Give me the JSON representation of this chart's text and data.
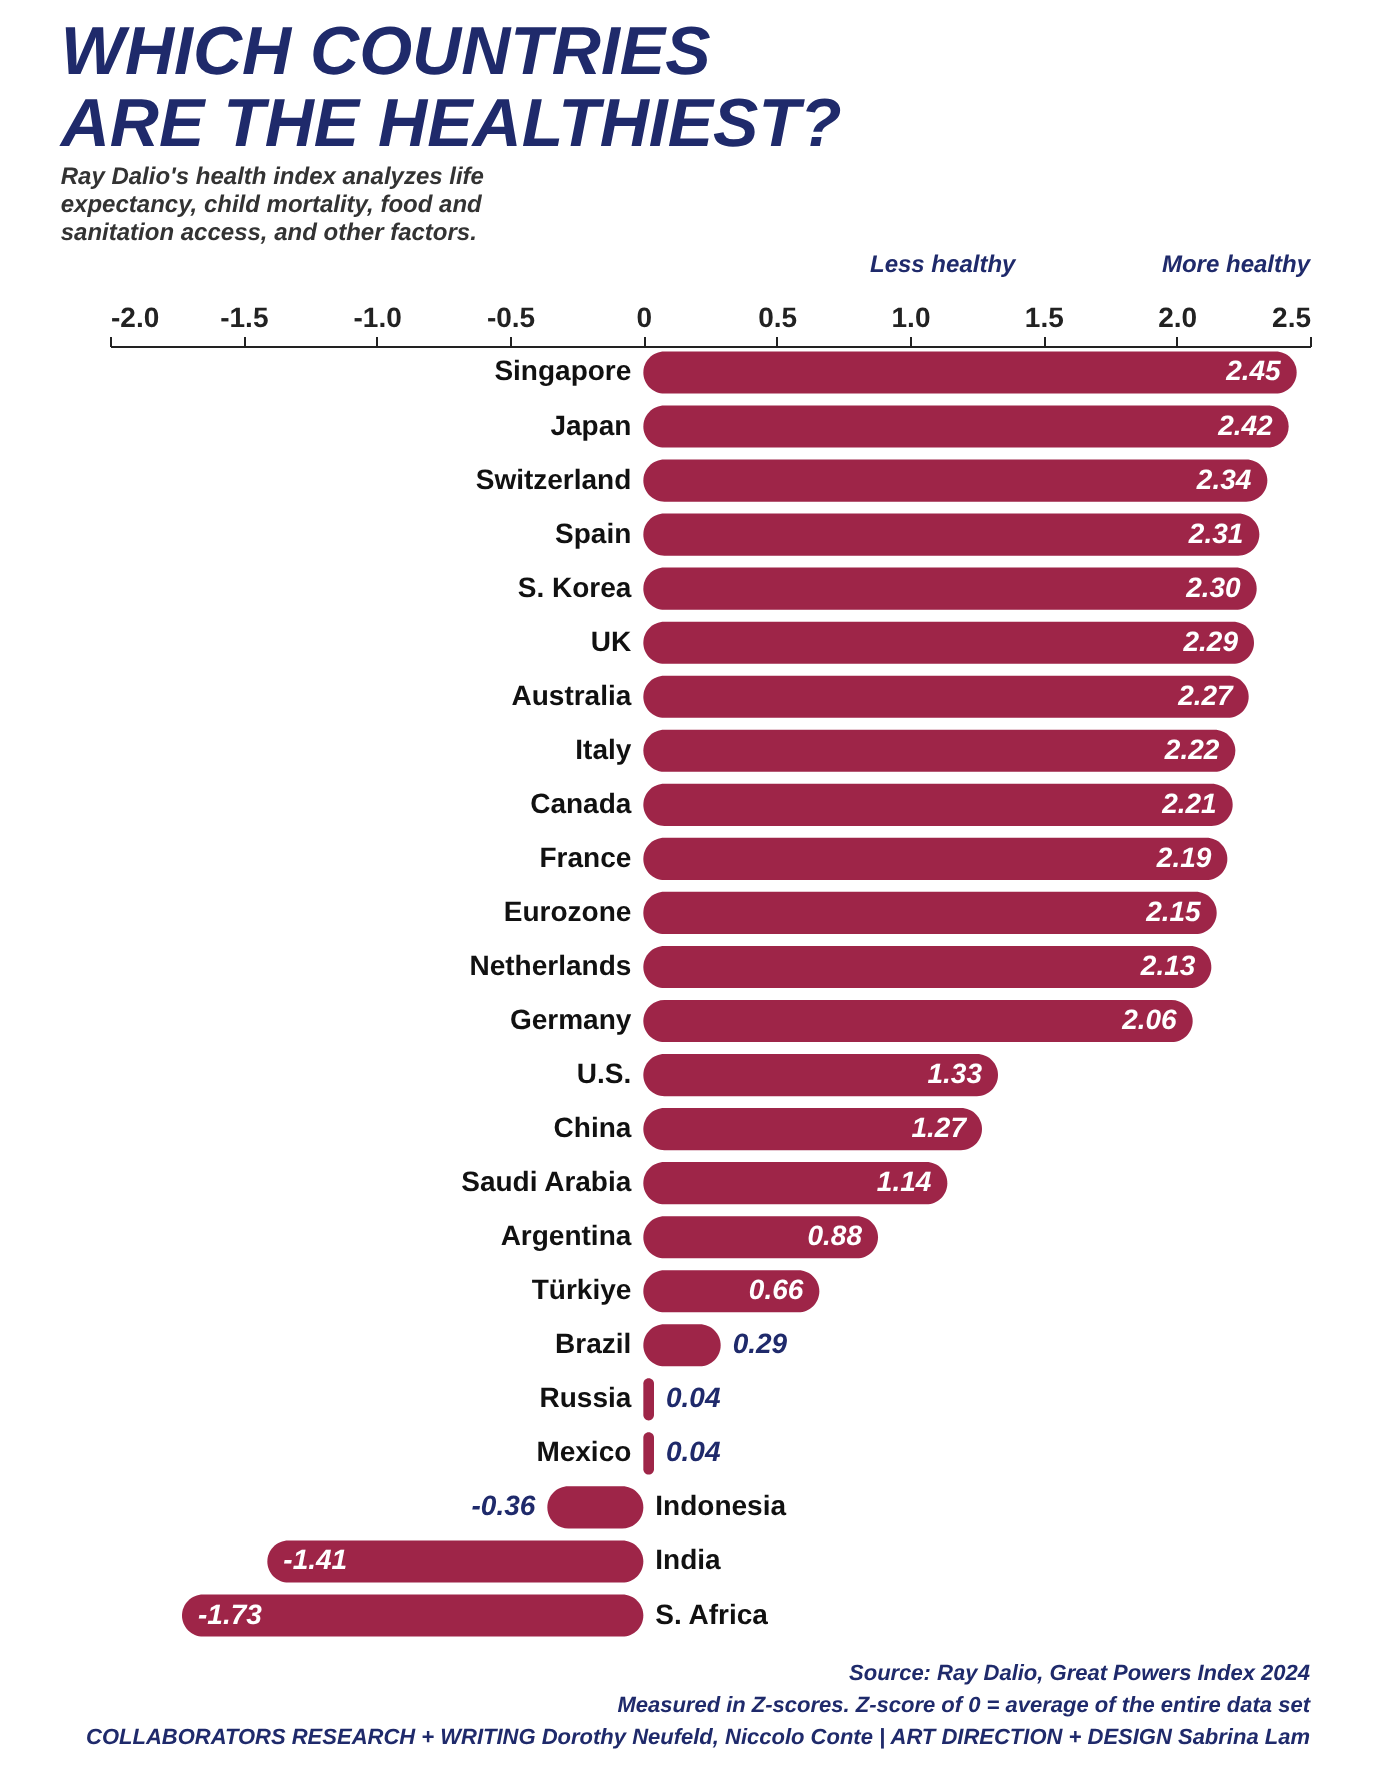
{
  "chart_data": {
    "type": "bar",
    "orientation": "horizontal",
    "title": "WHICH COUNTRIES ARE THE HEALTHIEST?",
    "subtitle": "Ray Dalio's health index analyzes life expectancy, child mortality, food and sanitation access, and other factors.",
    "categories": [
      "Singapore",
      "Japan",
      "Switzerland",
      "Spain",
      "S. Korea",
      "UK",
      "Australia",
      "Italy",
      "Canada",
      "France",
      "Eurozone",
      "Netherlands",
      "Germany",
      "U.S.",
      "China",
      "Saudi Arabia",
      "Argentina",
      "Türkiye",
      "Brazil",
      "Russia",
      "Mexico",
      "Indonesia",
      "India",
      "S. Africa"
    ],
    "values": [
      2.45,
      2.42,
      2.34,
      2.31,
      2.3,
      2.29,
      2.27,
      2.22,
      2.21,
      2.19,
      2.15,
      2.13,
      2.06,
      1.33,
      1.27,
      1.14,
      0.88,
      0.66,
      0.29,
      0.04,
      0.04,
      -0.36,
      -1.41,
      -1.73
    ],
    "value_labels": [
      "2.45",
      "2.42",
      "2.34",
      "2.31",
      "2.30",
      "2.29",
      "2.27",
      "2.22",
      "2.21",
      "2.19",
      "2.15",
      "2.13",
      "2.06",
      "1.33",
      "1.27",
      "1.14",
      "0.88",
      "0.66",
      "0.29",
      "0.04",
      "0.04",
      "-0.36",
      "-1.41",
      "-1.73"
    ],
    "color": "#9e2548",
    "xlim": [
      -2.0,
      2.5
    ],
    "xticks": [
      {
        "value": -2.0,
        "label": "-2.0"
      },
      {
        "value": -1.5,
        "label": "-1.5"
      },
      {
        "value": -1.0,
        "label": "-1.0"
      },
      {
        "value": -0.5,
        "label": "-0.5"
      },
      0,
      0.5,
      {
        "value": 1.0,
        "label": "1.0"
      },
      1.5,
      {
        "value": 2.0,
        "label": "2.0"
      },
      2.5
    ],
    "grid": false,
    "annotations": [
      "Less healthy",
      "More healthy",
      "Source: Ray Dalio, Great Powers Index 2024",
      "Measured in Z-scores. Z-score of 0 = average of the entire data set",
      "COLLABORATORS   RESEARCH + WRITING Dorothy Neufeld, Niccolo Conte  |  ART DIRECTION + DESIGN Sabrina Lam"
    ]
  }
}
